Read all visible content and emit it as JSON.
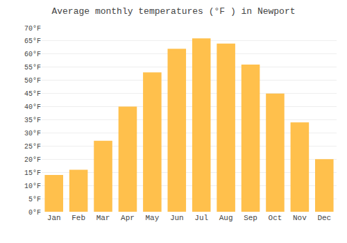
{
  "chart_data": {
    "type": "bar",
    "title": "Average monthly temperatures (°F ) in Newport",
    "categories": [
      "Jan",
      "Feb",
      "Mar",
      "Apr",
      "May",
      "Jun",
      "Jul",
      "Aug",
      "Sep",
      "Oct",
      "Nov",
      "Dec"
    ],
    "values": [
      14,
      16,
      27,
      40,
      53,
      62,
      66,
      64,
      56,
      45,
      34,
      20
    ],
    "color": "#FFC04C",
    "ylim": [
      0,
      70
    ],
    "yticks": [
      {
        "value": 0,
        "label": "0°F"
      },
      {
        "value": 5,
        "label": "5°F"
      },
      {
        "value": 10,
        "label": "10°F"
      },
      {
        "value": 15,
        "label": "15°F"
      },
      {
        "value": 20,
        "label": "20°F"
      },
      {
        "value": 25,
        "label": "25°F"
      },
      {
        "value": 30,
        "label": "30°F"
      },
      {
        "value": 35,
        "label": "35°F"
      },
      {
        "value": 40,
        "label": "40°F"
      },
      {
        "value": 45,
        "label": "45°F"
      },
      {
        "value": 50,
        "label": "50°F"
      },
      {
        "value": 55,
        "label": "55°F"
      },
      {
        "value": 60,
        "label": "60°F"
      },
      {
        "value": 65,
        "label": "65°F"
      },
      {
        "value": 70,
        "label": "70°F"
      }
    ],
    "grid": true
  }
}
